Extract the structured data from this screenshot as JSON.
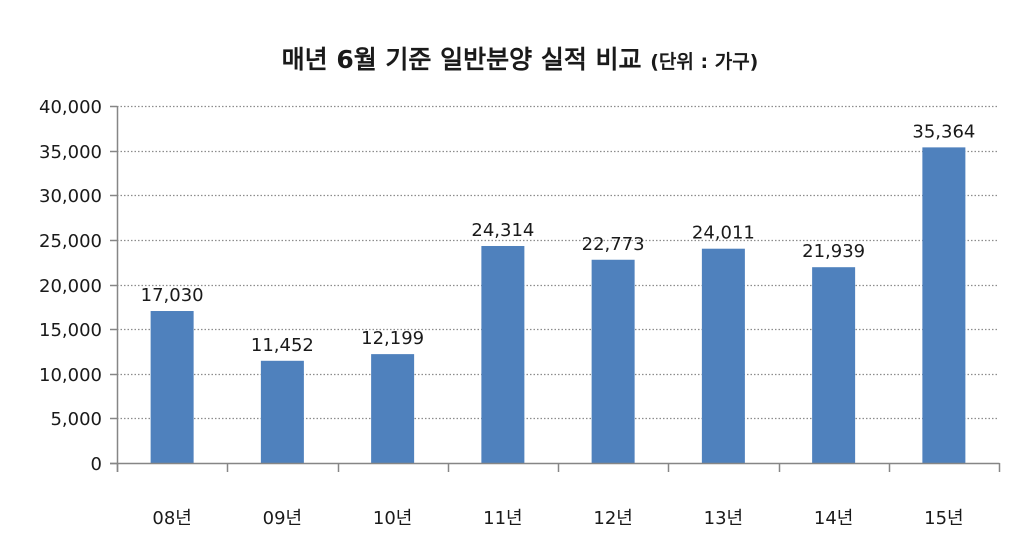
{
  "title": {
    "main": "매년 6월 기준 일반분양 실적 비교",
    "unit": "(단위 : 가구)"
  },
  "colors": {
    "bar": "#4F81BD",
    "axis": "#868686",
    "grid": "#8c8c8c",
    "text": "#1a1a1a"
  },
  "chart_data": {
    "type": "bar",
    "title": "매년 6월 기준 일반분양 실적 비교 (단위 : 가구)",
    "xlabel": "",
    "ylabel": "",
    "categories": [
      "08년",
      "09년",
      "10년",
      "11년",
      "12년",
      "13년",
      "14년",
      "15년"
    ],
    "values": [
      17030,
      11452,
      12199,
      24314,
      22773,
      24011,
      21939,
      35364
    ],
    "value_labels": [
      "17,030",
      "11,452",
      "12,199",
      "24,314",
      "22,773",
      "24,011",
      "21,939",
      "35,364"
    ],
    "ylim": [
      0,
      40000
    ],
    "yticks": [
      0,
      5000,
      10000,
      15000,
      20000,
      25000,
      30000,
      35000,
      40000
    ],
    "ytick_labels": [
      "0",
      "5,000",
      "10,000",
      "15,000",
      "20,000",
      "25,000",
      "30,000",
      "35,000",
      "40,000"
    ],
    "grid": "horizontal dotted",
    "legend": "none"
  }
}
